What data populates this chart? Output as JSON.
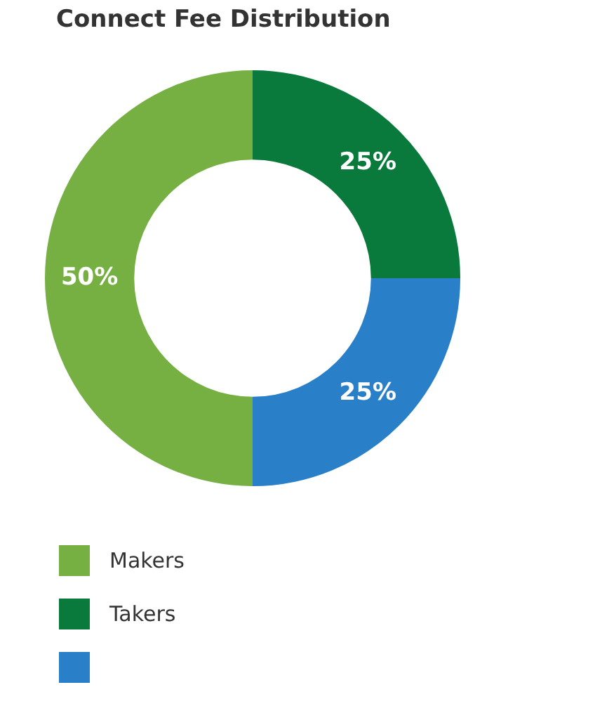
{
  "chart_data": {
    "type": "donut",
    "title": "Connect Fee Distribution",
    "categories": [
      "Makers",
      "Takers",
      null
    ],
    "values": [
      50,
      25,
      25
    ],
    "colors": [
      "#76b043",
      "#0a7a3c",
      "#2a7fc9"
    ],
    "value_labels": [
      "50%",
      "25%",
      "25%"
    ],
    "legend": "bottom"
  }
}
